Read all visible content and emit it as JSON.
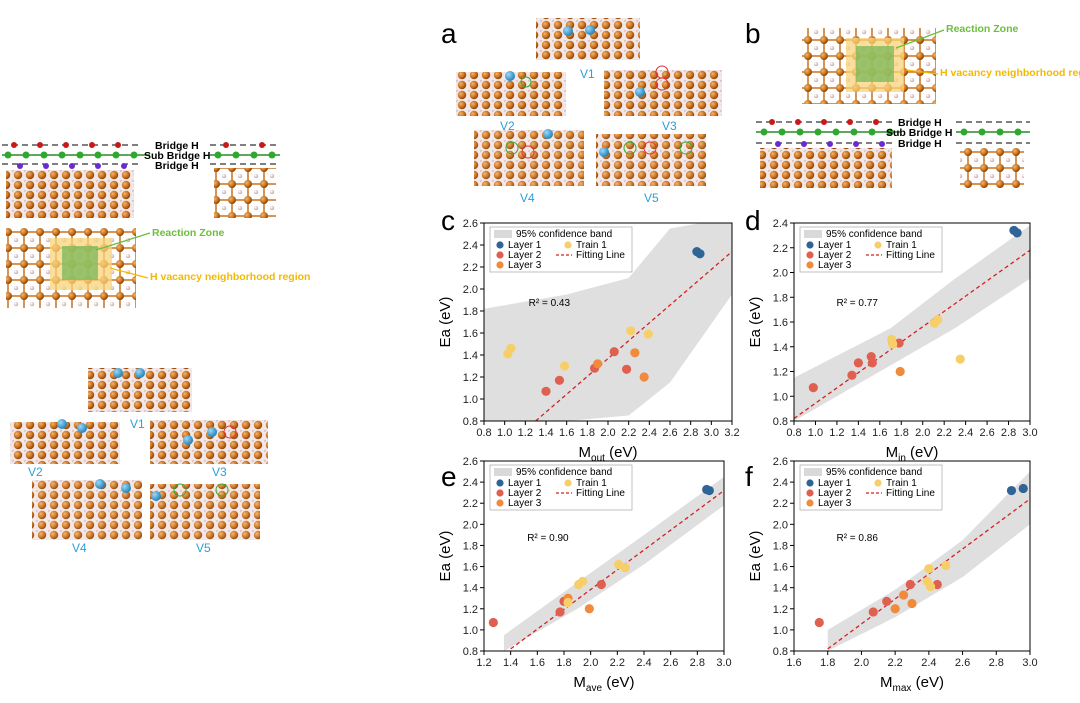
{
  "left_panel": {
    "labels": {
      "bridge_top": "Bridge H",
      "sub_bridge": "Sub Bridge H",
      "bridge_bottom": "Bridge H",
      "reaction_zone": "Reaction Zone",
      "h_vacancy": "H vacancy neighborhood region"
    },
    "vacancies": [
      "V1",
      "V2",
      "V3",
      "V4",
      "V5"
    ]
  },
  "panel_a": {
    "letter": "a",
    "vacancies": [
      "V1",
      "V2",
      "V3",
      "V4",
      "V5"
    ]
  },
  "panel_b": {
    "letter": "b",
    "labels": {
      "reaction_zone": "Reaction Zone",
      "h_vacancy": "H vacancy neighborhood region",
      "bridge_top": "Bridge H",
      "sub_bridge": "Sub Bridge H",
      "bridge_bottom": "Bridge H"
    }
  },
  "colors": {
    "layer1": "#2f6496",
    "layer2": "#e06050",
    "layer3": "#f08a3c",
    "train1": "#f7cf6a",
    "fit": "#d62020",
    "band": "#d9d9d9",
    "green": "#6bbf3b",
    "yellow": "#f5b800",
    "cyan": "#2aa0d8",
    "fe": "#c8701e",
    "h": "#e8c8c8"
  },
  "chart_data": [
    {
      "id": "c",
      "type": "scatter",
      "letter": "c",
      "title": "",
      "ylabel": "Ea (eV)",
      "xlabel_main": "M",
      "xlabel_sub": "out",
      "xlabel_unit": " (eV)",
      "xlim": [
        0.8,
        3.2
      ],
      "ylim": [
        0.8,
        2.6
      ],
      "xticks": [
        "0.8",
        "1.0",
        "1.2",
        "1.4",
        "1.6",
        "1.8",
        "2.0",
        "2.2",
        "2.4",
        "2.6",
        "2.8",
        "3.0",
        "3.2"
      ],
      "yticks": [
        "0.8",
        "1.0",
        "1.2",
        "1.4",
        "1.6",
        "1.8",
        "2.0",
        "2.2",
        "2.4",
        "2.6"
      ],
      "r2": "R² = 0.43",
      "legend": {
        "band": "95% confidence band",
        "layer1": "Layer 1",
        "train1": "Train 1",
        "layer2": "Layer 2",
        "fit": "Fitting Line",
        "layer3": "Layer 3"
      },
      "fit": {
        "x": [
          1.3,
          3.2
        ],
        "y": [
          0.8,
          2.34
        ]
      },
      "band": {
        "x": [
          0.8,
          1.6,
          2.2,
          2.6,
          3.2
        ],
        "upper": [
          1.82,
          1.95,
          2.1,
          2.55,
          2.65
        ],
        "lower": [
          0.8,
          0.8,
          0.85,
          1.15,
          1.95
        ]
      },
      "series": [
        {
          "name": "Layer 1",
          "color_key": "layer1",
          "points": [
            [
              2.86,
              2.34
            ],
            [
              2.89,
              2.32
            ]
          ]
        },
        {
          "name": "Layer 2",
          "color_key": "layer2",
          "points": [
            [
              1.4,
              1.07
            ],
            [
              1.53,
              1.17
            ],
            [
              2.06,
              1.43
            ],
            [
              2.18,
              1.27
            ],
            [
              1.87,
              1.28
            ]
          ]
        },
        {
          "name": "Layer 3",
          "color_key": "layer3",
          "points": [
            [
              2.26,
              1.42
            ],
            [
              2.35,
              1.2
            ],
            [
              1.9,
              1.32
            ]
          ]
        },
        {
          "name": "Train 1",
          "color_key": "train1",
          "points": [
            [
              1.03,
              1.41
            ],
            [
              1.06,
              1.46
            ],
            [
              1.58,
              1.3
            ],
            [
              2.22,
              1.62
            ],
            [
              2.39,
              1.59
            ]
          ]
        }
      ]
    },
    {
      "id": "d",
      "type": "scatter",
      "letter": "d",
      "ylabel": "Ea (eV)",
      "xlabel_main": "M",
      "xlabel_sub": "in",
      "xlabel_unit": " (eV)",
      "xlim": [
        0.8,
        3.0
      ],
      "ylim": [
        0.8,
        2.4
      ],
      "xticks": [
        "0.8",
        "1.0",
        "1.2",
        "1.4",
        "1.6",
        "1.8",
        "2.0",
        "2.2",
        "2.4",
        "2.6",
        "2.8",
        "3.0"
      ],
      "yticks": [
        "0.8",
        "1.0",
        "1.2",
        "1.4",
        "1.6",
        "1.8",
        "2.0",
        "2.2",
        "2.4"
      ],
      "r2": "R² = 0.77",
      "legend": {
        "band": "95% confidence band",
        "layer1": "Layer 1",
        "train1": "Train 1",
        "layer2": "Layer 2",
        "fit": "Fitting Line",
        "layer3": "Layer 3"
      },
      "fit": {
        "x": [
          0.8,
          3.0
        ],
        "y": [
          0.82,
          2.18
        ]
      },
      "band": {
        "x": [
          0.8,
          1.7,
          2.3,
          3.0
        ],
        "upper": [
          1.15,
          1.55,
          1.95,
          2.38
        ],
        "lower": [
          0.8,
          1.25,
          1.55,
          1.95
        ]
      },
      "series": [
        {
          "name": "Layer 1",
          "color_key": "layer1",
          "points": [
            [
              2.85,
              2.34
            ],
            [
              2.88,
              2.32
            ]
          ]
        },
        {
          "name": "Layer 2",
          "color_key": "layer2",
          "points": [
            [
              0.98,
              1.07
            ],
            [
              1.34,
              1.17
            ],
            [
              1.4,
              1.27
            ],
            [
              1.52,
              1.32
            ],
            [
              1.53,
              1.27
            ],
            [
              1.78,
              1.43
            ]
          ]
        },
        {
          "name": "Layer 3",
          "color_key": "layer3",
          "points": [
            [
              1.79,
              1.2
            ],
            [
              1.72,
              1.43
            ]
          ]
        },
        {
          "name": "Train 1",
          "color_key": "train1",
          "points": [
            [
              1.71,
              1.46
            ],
            [
              1.72,
              1.42
            ],
            [
              2.11,
              1.59
            ],
            [
              2.14,
              1.62
            ],
            [
              2.35,
              1.3
            ]
          ]
        }
      ]
    },
    {
      "id": "e",
      "type": "scatter",
      "letter": "e",
      "ylabel": "Ea (eV)",
      "xlabel_main": "M",
      "xlabel_sub": "ave",
      "xlabel_unit": " (eV)",
      "xlim": [
        1.2,
        3.0
      ],
      "ylim": [
        0.8,
        2.6
      ],
      "xticks": [
        "1.2",
        "1.4",
        "1.6",
        "1.8",
        "2.0",
        "2.2",
        "2.4",
        "2.6",
        "2.8",
        "3.0"
      ],
      "yticks": [
        "0.8",
        "1.0",
        "1.2",
        "1.4",
        "1.6",
        "1.8",
        "2.0",
        "2.2",
        "2.4",
        "2.6"
      ],
      "r2": "R² = 0.90",
      "legend": {
        "band": "95% confidence band",
        "layer1": "Layer 1",
        "train1": "Train 1",
        "layer2": "Layer 2",
        "fit": "Fitting Line",
        "layer3": "Layer 3"
      },
      "fit": {
        "x": [
          1.4,
          3.0
        ],
        "y": [
          0.82,
          2.32
        ]
      },
      "band": {
        "x": [
          1.35,
          1.9,
          2.4,
          3.0
        ],
        "upper": [
          0.95,
          1.45,
          1.9,
          2.45
        ],
        "lower": [
          0.8,
          1.2,
          1.62,
          2.18
        ]
      },
      "series": [
        {
          "name": "Layer 1",
          "color_key": "layer1",
          "points": [
            [
              2.87,
              2.33
            ],
            [
              2.89,
              2.32
            ]
          ]
        },
        {
          "name": "Layer 2",
          "color_key": "layer2",
          "points": [
            [
              1.27,
              1.07
            ],
            [
              1.77,
              1.17
            ],
            [
              1.8,
              1.27
            ],
            [
              2.08,
              1.43
            ]
          ]
        },
        {
          "name": "Layer 3",
          "color_key": "layer3",
          "points": [
            [
              1.99,
              1.2
            ],
            [
              1.83,
              1.3
            ]
          ]
        },
        {
          "name": "Train 1",
          "color_key": "train1",
          "points": [
            [
              1.91,
              1.43
            ],
            [
              1.94,
              1.46
            ],
            [
              1.83,
              1.26
            ],
            [
              2.21,
              1.62
            ],
            [
              2.26,
              1.59
            ]
          ]
        }
      ]
    },
    {
      "id": "f",
      "type": "scatter",
      "letter": "f",
      "ylabel": "Ea (eV)",
      "xlabel_main": "M",
      "xlabel_sub": "max",
      "xlabel_unit": " (eV)",
      "xlim": [
        1.6,
        3.0
      ],
      "ylim": [
        0.8,
        2.6
      ],
      "xticks": [
        "1.6",
        "1.8",
        "2.0",
        "2.2",
        "2.4",
        "2.6",
        "2.8",
        "3.0"
      ],
      "yticks": [
        "0.8",
        "1.0",
        "1.2",
        "1.4",
        "1.6",
        "1.8",
        "2.0",
        "2.2",
        "2.4",
        "2.6"
      ],
      "r2": "R² = 0.86",
      "legend": {
        "band": "95% confidence band",
        "layer1": "Layer 1",
        "train1": "Train 1",
        "layer2": "Layer 2",
        "fit": "Fitting Line",
        "layer3": "Layer 3"
      },
      "fit": {
        "x": [
          1.8,
          3.0
        ],
        "y": [
          0.82,
          2.24
        ]
      },
      "band": {
        "x": [
          1.8,
          2.2,
          2.6,
          3.0
        ],
        "upper": [
          1.0,
          1.38,
          1.85,
          2.5
        ],
        "lower": [
          0.8,
          1.12,
          1.5,
          2.0
        ]
      },
      "series": [
        {
          "name": "Layer 1",
          "color_key": "layer1",
          "points": [
            [
              2.89,
              2.32
            ],
            [
              2.96,
              2.34
            ]
          ]
        },
        {
          "name": "Layer 2",
          "color_key": "layer2",
          "points": [
            [
              1.75,
              1.07
            ],
            [
              2.07,
              1.17
            ],
            [
              2.15,
              1.27
            ],
            [
              2.29,
              1.43
            ],
            [
              2.45,
              1.43
            ]
          ]
        },
        {
          "name": "Layer 3",
          "color_key": "layer3",
          "points": [
            [
              2.2,
              1.2
            ],
            [
              2.3,
              1.25
            ],
            [
              2.25,
              1.33
            ]
          ]
        },
        {
          "name": "Train 1",
          "color_key": "train1",
          "points": [
            [
              2.39,
              1.46
            ],
            [
              2.4,
              1.58
            ],
            [
              2.5,
              1.61
            ],
            [
              2.41,
              1.41
            ]
          ]
        }
      ]
    }
  ]
}
